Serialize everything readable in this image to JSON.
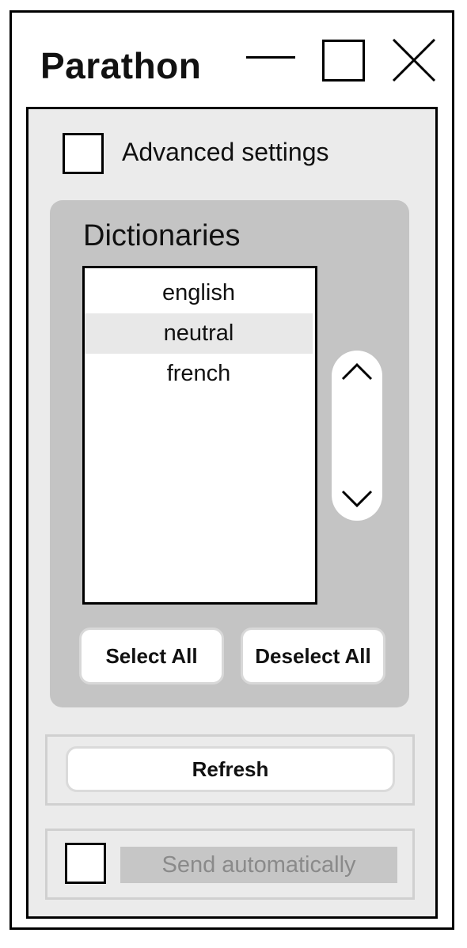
{
  "window": {
    "title": "Parathon"
  },
  "advanced": {
    "label": "Advanced settings",
    "checked": false
  },
  "dictionaries": {
    "title": "Dictionaries",
    "items": [
      {
        "label": "english",
        "selected": false
      },
      {
        "label": "neutral",
        "selected": true
      },
      {
        "label": "french",
        "selected": false
      }
    ],
    "select_all_label": "Select All",
    "deselect_all_label": "Deselect All"
  },
  "refresh": {
    "label": "Refresh"
  },
  "send": {
    "label": "Send automatically",
    "checked": false,
    "enabled": false
  },
  "icons": {
    "minimize": "minimize-icon",
    "maximize": "maximize-icon",
    "close": "close-icon",
    "scroll_up": "chevron-up-icon",
    "scroll_down": "chevron-down-icon"
  },
  "colors": {
    "panel_bg": "#ebebeb",
    "group_bg": "#c4c4c4",
    "selected_row": "#e8e8e8",
    "disabled_label_bg": "#c6c6c6",
    "disabled_text": "#8a8a8a"
  }
}
